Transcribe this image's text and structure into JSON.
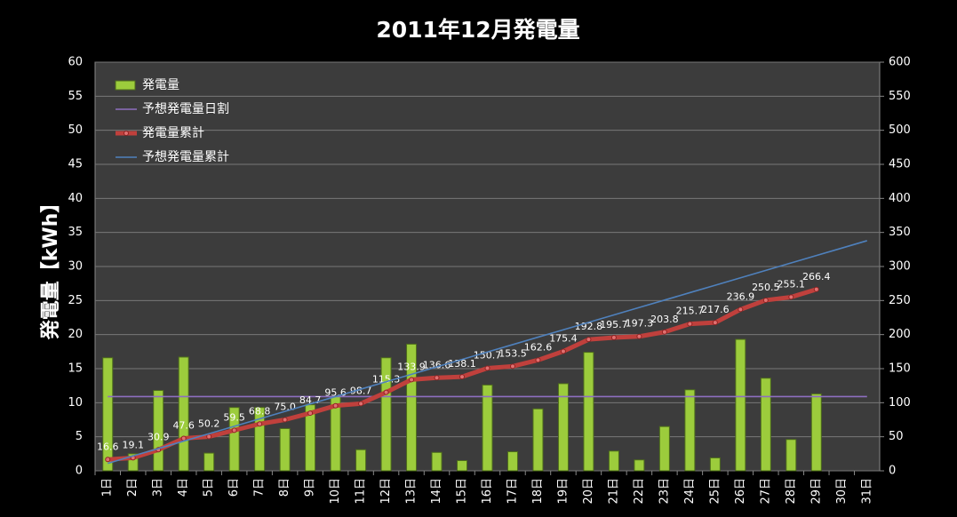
{
  "chart_data": {
    "type": "combo",
    "title": "2011年12月発電量",
    "y_label": "発電量【kWh】",
    "categories": [
      "1日",
      "2日",
      "3日",
      "4日",
      "5日",
      "6日",
      "7日",
      "8日",
      "9日",
      "10日",
      "11日",
      "12日",
      "13日",
      "14日",
      "15日",
      "16日",
      "17日",
      "18日",
      "19日",
      "20日",
      "21日",
      "22日",
      "23日",
      "24日",
      "25日",
      "26日",
      "27日",
      "28日",
      "29日",
      "30日",
      "31日"
    ],
    "ylim": [
      0,
      60
    ],
    "yticks": [
      0,
      5,
      10,
      15,
      20,
      25,
      30,
      35,
      40,
      45,
      50,
      55,
      60
    ],
    "y2lim": [
      0,
      600
    ],
    "y2ticks": [
      0,
      50,
      100,
      150,
      200,
      250,
      300,
      350,
      400,
      450,
      500,
      550,
      600
    ],
    "grid": true,
    "legend": "upper left",
    "series": [
      {
        "name": "発電量",
        "type": "bar",
        "color": "#9ccc3c",
        "values": [
          16.6,
          2.5,
          11.8,
          16.7,
          2.6,
          9.3,
          9.3,
          6.2,
          9.7,
          10.9,
          3.1,
          16.6,
          18.6,
          2.7,
          1.5,
          12.6,
          2.8,
          9.1,
          12.8,
          17.4,
          2.9,
          1.6,
          6.5,
          11.9,
          1.9,
          19.3,
          13.6,
          4.6,
          11.3,
          null,
          null
        ]
      },
      {
        "name": "予想発電量日割",
        "type": "line",
        "color": "#8e6fc0",
        "values": [
          10.9,
          10.9,
          10.9,
          10.9,
          10.9,
          10.9,
          10.9,
          10.9,
          10.9,
          10.9,
          10.9,
          10.9,
          10.9,
          10.9,
          10.9,
          10.9,
          10.9,
          10.9,
          10.9,
          10.9,
          10.9,
          10.9,
          10.9,
          10.9,
          10.9,
          10.9,
          10.9,
          10.9,
          10.9,
          10.9,
          10.9
        ]
      },
      {
        "name": "発電量累計",
        "type": "line",
        "axis": "y2",
        "color": "#c0403c",
        "markers": true,
        "values": [
          16.6,
          19.1,
          30.9,
          47.6,
          50.2,
          59.5,
          68.8,
          75.0,
          84.7,
          95.6,
          98.7,
          115.3,
          133.9,
          136.6,
          138.1,
          150.7,
          153.5,
          162.6,
          175.4,
          192.8,
          195.7,
          197.3,
          203.8,
          215.7,
          217.6,
          236.9,
          250.5,
          255.1,
          266.4,
          null,
          null
        ],
        "value_labels": [
          "16.6",
          "19.1",
          "30.9",
          "47.6",
          "50.2",
          "59.5",
          "68.8",
          "75.0",
          "84.7",
          "95.6",
          "98.7",
          "115.3",
          "133.9",
          "136.6",
          "138.1",
          "150.7",
          "153.5",
          "162.6",
          "175.4",
          "192.8",
          "195.7",
          "197.3",
          "203.8",
          "215.7",
          "217.6",
          "236.9",
          "250.5",
          "255.1",
          "266.4",
          null,
          null
        ]
      },
      {
        "name": "予想発電量累計",
        "type": "line",
        "axis": "y2",
        "color": "#4f81bd",
        "values": [
          10.9,
          21.8,
          32.7,
          43.6,
          54.5,
          65.4,
          76.3,
          87.2,
          98.1,
          109,
          119.9,
          130.8,
          141.7,
          152.6,
          163.5,
          174.4,
          185.3,
          196.2,
          207.1,
          218,
          228.9,
          239.8,
          250.7,
          261.6,
          272.5,
          283.4,
          294.3,
          305.2,
          316.1,
          327,
          337.9
        ]
      }
    ]
  }
}
